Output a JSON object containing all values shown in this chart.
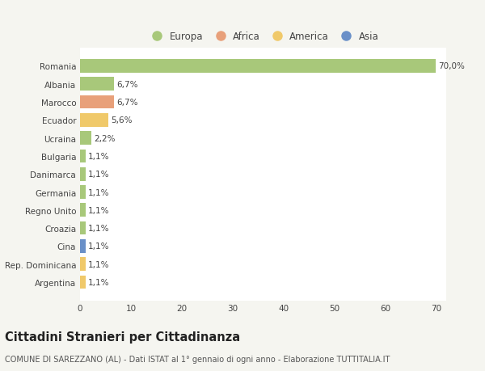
{
  "countries": [
    "Romania",
    "Albania",
    "Marocco",
    "Ecuador",
    "Ucraina",
    "Bulgaria",
    "Danimarca",
    "Germania",
    "Regno Unito",
    "Croazia",
    "Cina",
    "Rep. Dominicana",
    "Argentina"
  ],
  "values": [
    70.0,
    6.7,
    6.7,
    5.6,
    2.2,
    1.1,
    1.1,
    1.1,
    1.1,
    1.1,
    1.1,
    1.1,
    1.1
  ],
  "labels": [
    "70,0%",
    "6,7%",
    "6,7%",
    "5,6%",
    "2,2%",
    "1,1%",
    "1,1%",
    "1,1%",
    "1,1%",
    "1,1%",
    "1,1%",
    "1,1%",
    "1,1%"
  ],
  "continent": [
    "Europa",
    "Europa",
    "Africa",
    "America",
    "Europa",
    "Europa",
    "Europa",
    "Europa",
    "Europa",
    "Europa",
    "Asia",
    "America",
    "America"
  ],
  "colors": {
    "Europa": "#a8c87a",
    "Africa": "#e8a07a",
    "America": "#f0c96a",
    "Asia": "#6a90c8"
  },
  "figure_bg": "#f5f5f0",
  "plot_bg": "#ffffff",
  "xlim": [
    0,
    72
  ],
  "xticks": [
    0,
    10,
    20,
    30,
    40,
    50,
    60,
    70
  ],
  "title": "Cittadini Stranieri per Cittadinanza",
  "subtitle": "COMUNE DI SAREZZANO (AL) - Dati ISTAT al 1° gennaio di ogni anno - Elaborazione TUTTITALIA.IT",
  "grid_color": "#dddddd",
  "label_fontsize": 7.5,
  "tick_fontsize": 7.5,
  "title_fontsize": 10.5,
  "subtitle_fontsize": 7.0,
  "bar_height": 0.75,
  "bar_alpha": 1.0,
  "legend_order": [
    "Europa",
    "Africa",
    "America",
    "Asia"
  ]
}
